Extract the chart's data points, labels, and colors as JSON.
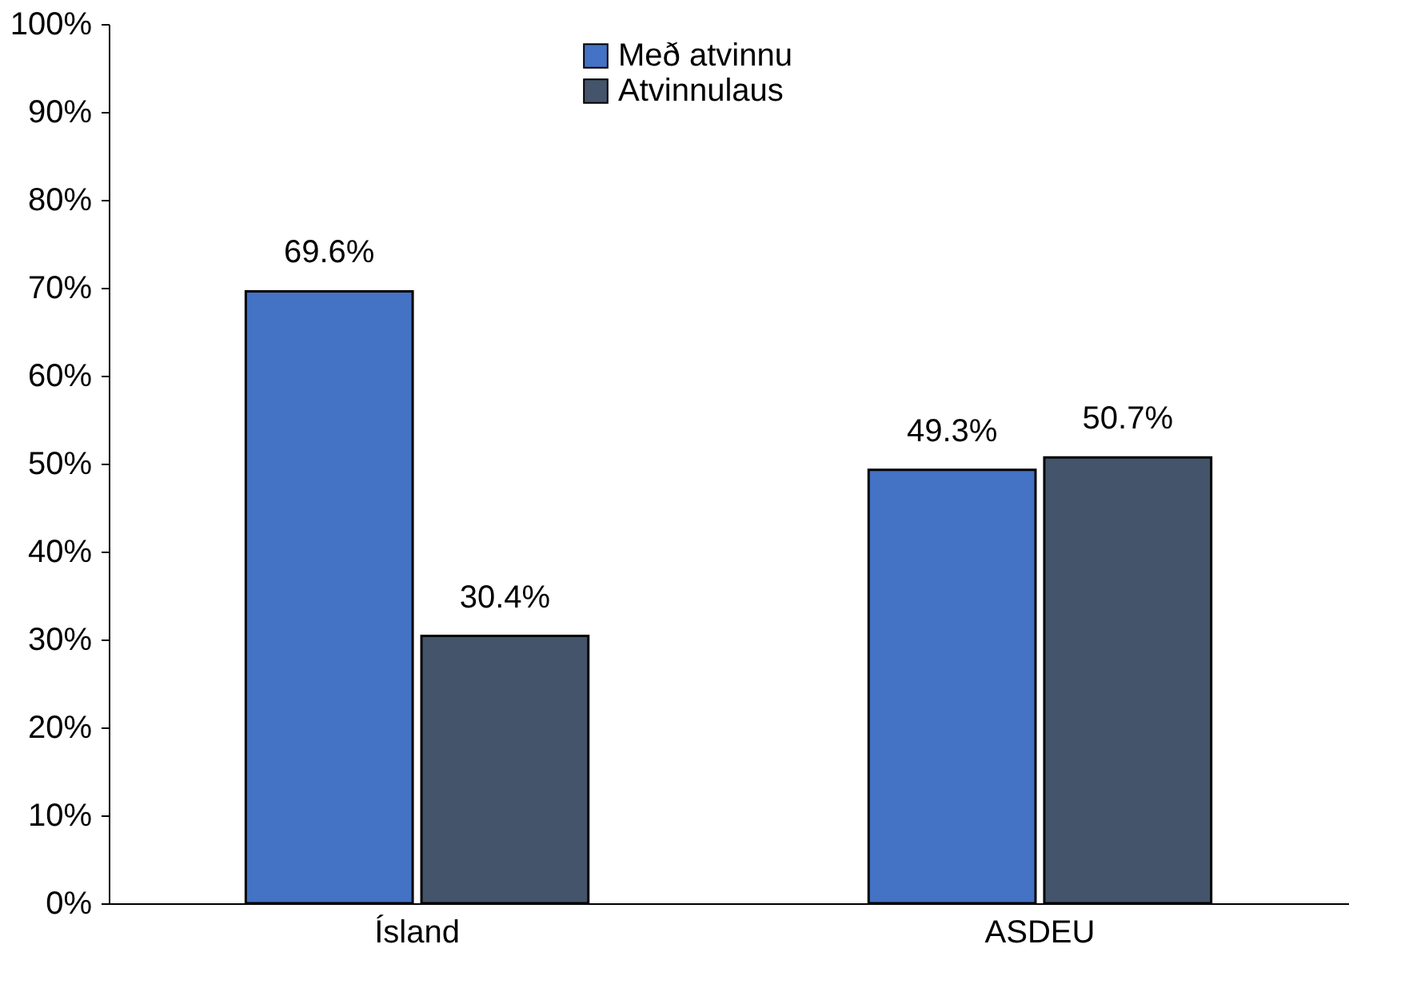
{
  "chart_data": {
    "type": "bar",
    "categories": [
      "Ísland",
      "ASDEU"
    ],
    "series": [
      {
        "name": "Með atvinnu",
        "color": "#4472c4",
        "values": [
          69.6,
          49.3
        ],
        "value_labels": [
          "69.6%",
          "49.3%"
        ]
      },
      {
        "name": "Atvinnulaus",
        "color": "#44546a",
        "values": [
          30.4,
          50.7
        ],
        "value_labels": [
          "30.4%",
          "50.7%"
        ]
      }
    ],
    "ylim": [
      0,
      100
    ],
    "yticks": [
      {
        "value": 0,
        "label": "0%"
      },
      {
        "value": 10,
        "label": "10%"
      },
      {
        "value": 20,
        "label": "20%"
      },
      {
        "value": 30,
        "label": "30%"
      },
      {
        "value": 40,
        "label": "40%"
      },
      {
        "value": 50,
        "label": "50%"
      },
      {
        "value": 60,
        "label": "60%"
      },
      {
        "value": 70,
        "label": "70%"
      },
      {
        "value": 80,
        "label": "80%"
      },
      {
        "value": 90,
        "label": "90%"
      },
      {
        "value": 100,
        "label": "100%"
      }
    ],
    "grid": false,
    "legend": "top"
  }
}
